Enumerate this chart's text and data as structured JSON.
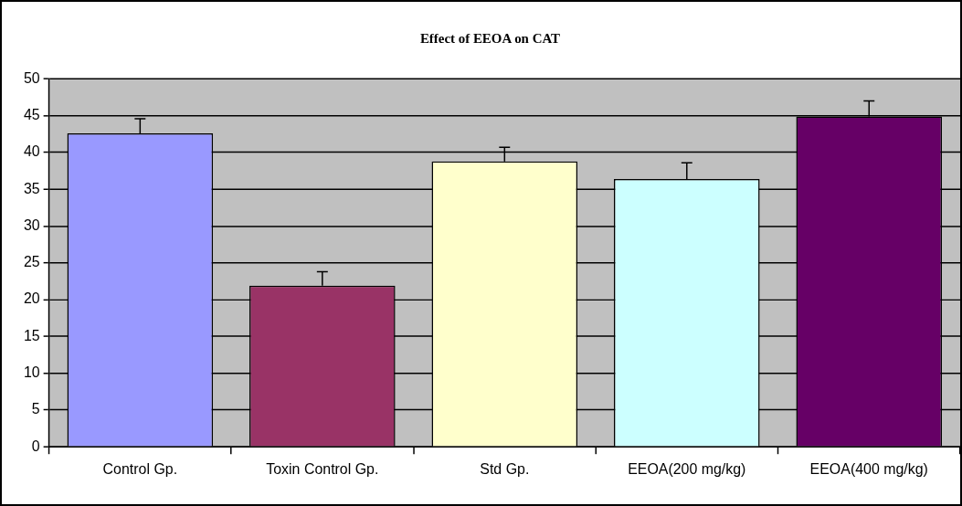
{
  "chart_data": {
    "type": "bar",
    "title": "Effect of EEOA on CAT",
    "categories": [
      "Control Gp.",
      "Toxin Control Gp.",
      "Std Gp.",
      "EEOA(200 mg/kg)",
      "EEOA(400 mg/kg)"
    ],
    "values": [
      42.6,
      21.9,
      38.8,
      36.4,
      44.9
    ],
    "colors": [
      "#9999ff",
      "#993366",
      "#ffffcc",
      "#ccffff",
      "#660066"
    ],
    "errors": [
      2.0,
      1.9,
      1.9,
      2.2,
      2.1
    ],
    "ylim": [
      0,
      50
    ],
    "yticks": [
      0,
      5,
      10,
      15,
      20,
      25,
      30,
      35,
      40,
      45,
      50
    ],
    "grid": "y",
    "legend": false
  }
}
